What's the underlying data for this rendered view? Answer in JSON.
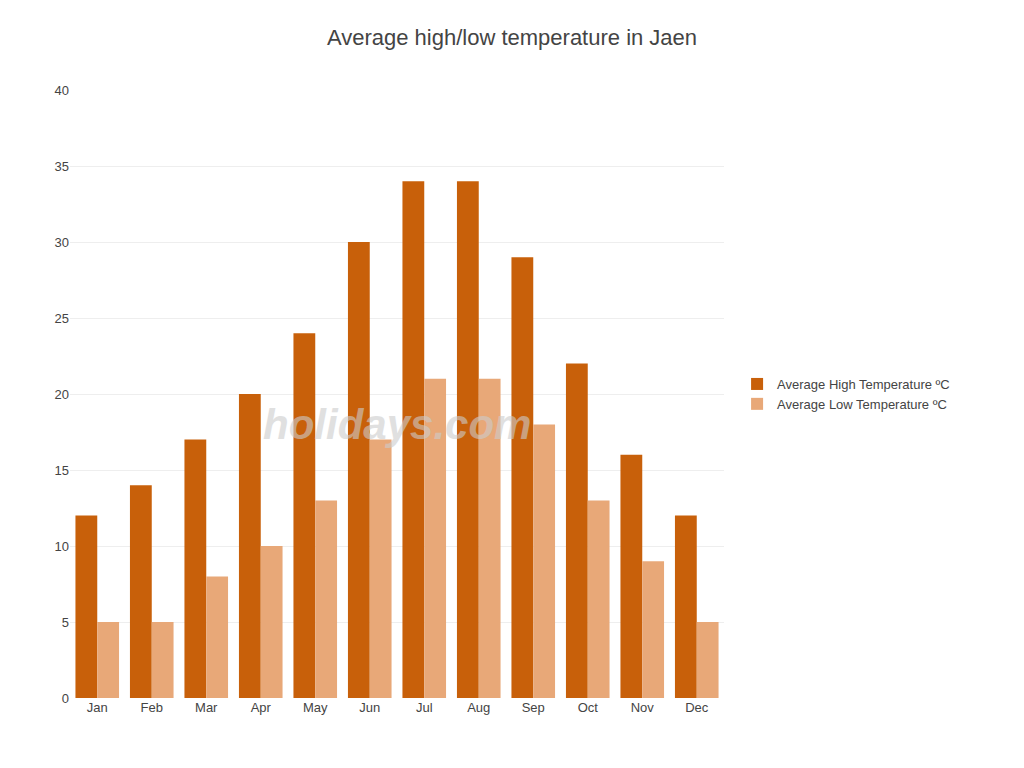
{
  "chart_data": {
    "type": "bar",
    "title": "Average high/low temperature in Jaen",
    "categories": [
      "Jan",
      "Feb",
      "Mar",
      "Apr",
      "May",
      "Jun",
      "Jul",
      "Aug",
      "Sep",
      "Oct",
      "Nov",
      "Dec"
    ],
    "series": [
      {
        "name": "Average High Temperature ºC",
        "color": "#C8600A",
        "values": [
          12,
          14,
          17,
          20,
          24,
          30,
          34,
          34,
          29,
          22,
          16,
          12
        ]
      },
      {
        "name": "Average Low Temperature ºC",
        "color": "#E8A878",
        "values": [
          5,
          5,
          8,
          10,
          13,
          17,
          21,
          21,
          18,
          13,
          9,
          5
        ]
      }
    ],
    "ylim": [
      0,
      40
    ],
    "yticks": [
      0,
      5,
      10,
      15,
      20,
      25,
      30,
      35,
      40
    ],
    "grid": true,
    "legend": "right",
    "annotations": [
      "holidays.com"
    ]
  }
}
